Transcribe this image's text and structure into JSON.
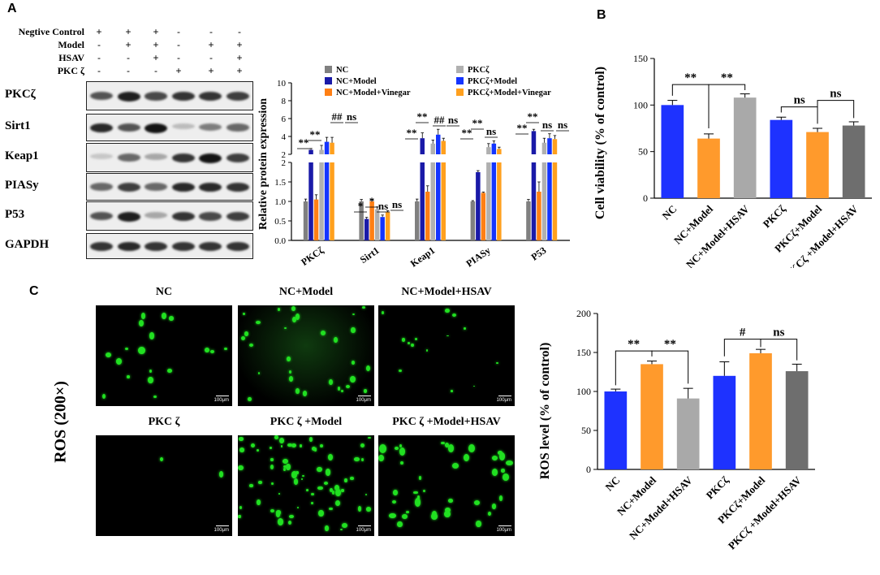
{
  "panels": {
    "a": "A",
    "b": "B",
    "c": "C"
  },
  "treatment_table": {
    "rows": [
      {
        "label": "Negtive Control",
        "signs": [
          "+",
          "+",
          "+",
          "-",
          "-",
          "-"
        ]
      },
      {
        "label": "Model",
        "signs": [
          "-",
          "+",
          "+",
          "-",
          "+",
          "+"
        ]
      },
      {
        "label": "HSAV",
        "signs": [
          "-",
          "-",
          "+",
          "-",
          "-",
          "+"
        ]
      },
      {
        "label": "PKC ζ",
        "signs": [
          "-",
          "-",
          "-",
          "+",
          "+",
          "+"
        ]
      }
    ]
  },
  "blots": [
    "PKCζ",
    "Sirt1",
    "Keap1",
    "PIASy",
    "P53",
    "GAPDH"
  ],
  "colors": {
    "blue_light": "#848484",
    "nc": "#808080",
    "nc_model": "#1a1aa8",
    "nc_model_vinegar": "#ff7f14",
    "pkc": "#b0b0b0",
    "pkc_model": "#1434ff",
    "pkc_model_vinegar": "#ffa01e",
    "b_blue": "#1e32ff",
    "b_orange": "#ff9a2c",
    "b_lgray": "#a9a9a9",
    "b_dgray": "#6e6e6e"
  },
  "chart_data": [
    {
      "id": "protein_expression",
      "type": "bar",
      "title": "",
      "xlabel": "",
      "ylabel": "Relative protein expression",
      "categories": [
        "PKCζ",
        "Sirt1",
        "Keap1",
        "PIASy",
        "P53"
      ],
      "axis_break": true,
      "ylim_lower": [
        0,
        2.0
      ],
      "ylim_upper": [
        2,
        10
      ],
      "lower_ticks": [
        "0.0",
        "0.5",
        "1.0",
        "1.5",
        "2"
      ],
      "upper_ticks": [
        "2",
        "4",
        "6",
        "8",
        "10"
      ],
      "legend": [
        "NC",
        "NC+Model",
        "NC+Model+Vinegar",
        "PKCζ",
        "PKCζ+Model",
        "PKCζ+Model+Vinegar"
      ],
      "series": [
        {
          "name": "NC",
          "values": [
            1.0,
            1.0,
            1.0,
            1.0,
            1.0
          ]
        },
        {
          "name": "NC+Model",
          "values": [
            2.5,
            0.55,
            3.8,
            1.75,
            4.6
          ]
        },
        {
          "name": "NC+Model+Vinegar",
          "values": [
            1.05,
            1.0,
            1.25,
            1.22,
            1.25
          ]
        },
        {
          "name": "PKCζ",
          "values": [
            2.5,
            0.8,
            3.2,
            2.8,
            3.3
          ]
        },
        {
          "name": "PKCζ+Model",
          "values": [
            3.4,
            0.6,
            4.2,
            3.2,
            3.8
          ]
        },
        {
          "name": "PKCζ+Model+Vinegar",
          "values": [
            3.3,
            0.72,
            3.5,
            2.6,
            3.7
          ]
        }
      ],
      "errors": [
        [
          0.06,
          0.05,
          0.06,
          0.02,
          0.05
        ],
        [
          0.15,
          0.04,
          0.6,
          0.04,
          0.2
        ],
        [
          0.12,
          0.05,
          0.15,
          0.02,
          0.25
        ],
        [
          0.5,
          0.06,
          0.4,
          0.4,
          0.5
        ],
        [
          0.5,
          0.05,
          0.6,
          0.3,
          0.5
        ],
        [
          0.6,
          0.04,
          0.3,
          0.2,
          0.4
        ]
      ],
      "annotations": [
        "**",
        "**",
        "##",
        "ns",
        "*",
        "*",
        "ns",
        "ns",
        "**",
        "**",
        "##",
        "ns",
        "**",
        "**",
        "ns",
        "**",
        "**",
        "ns",
        "ns"
      ]
    },
    {
      "id": "cell_viability",
      "type": "bar",
      "title": "",
      "xlabel": "",
      "ylabel": "Cell viability (% of control)",
      "categories": [
        "NC",
        "NC+Model",
        "NC+Model+HSAV",
        "PKCζ",
        "PKCζ+Model",
        "PKCζ +Model+HSAV"
      ],
      "values": [
        100,
        64,
        108,
        84,
        71,
        78
      ],
      "errors": [
        5,
        5,
        4,
        3,
        4,
        4
      ],
      "ylim": [
        0,
        150
      ],
      "yticks": [
        "0",
        "50",
        "100",
        "150"
      ],
      "annotations": [
        "**",
        "**",
        "ns",
        "ns"
      ]
    },
    {
      "id": "ros_level",
      "type": "bar",
      "title": "",
      "xlabel": "",
      "ylabel": "ROS level (% of control)",
      "categories": [
        "NC",
        "NC+Model",
        "NC+Model+HSAV",
        "PKCζ",
        "PKCζ+Model",
        "PKCζ +Model+HSAV"
      ],
      "values": [
        100,
        135,
        91,
        120,
        149,
        126
      ],
      "errors": [
        3,
        4,
        13,
        18,
        5,
        9
      ],
      "ylim": [
        0,
        200
      ],
      "yticks": [
        "0",
        "50",
        "100",
        "150",
        "200"
      ],
      "annotations": [
        "**",
        "**",
        "#",
        "ns"
      ]
    }
  ],
  "micrographs": {
    "ylabel": "ROS (200×)",
    "scale_label": "100μm",
    "titles": [
      "NC",
      "NC+Model",
      "NC+Model+HSAV",
      "PKC ζ",
      "PKC ζ +Model",
      "PKC ζ +Model+HSAV"
    ],
    "glow_color": "#21e021"
  }
}
